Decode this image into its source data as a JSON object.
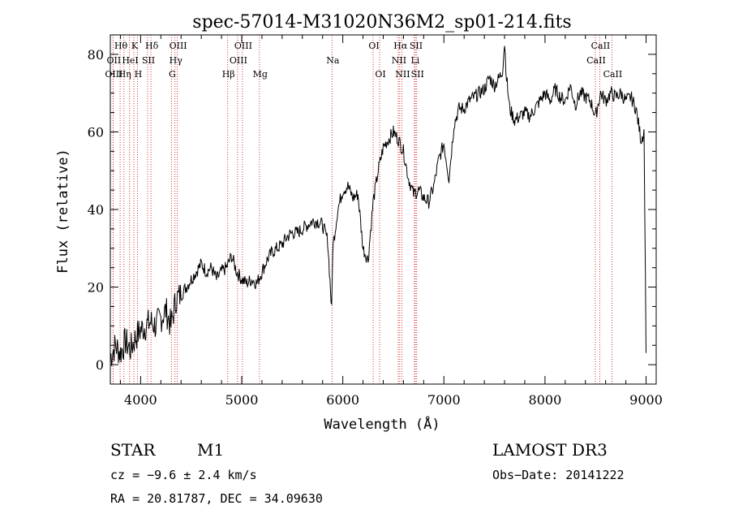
{
  "chart_data": {
    "type": "line",
    "title": "spec-57014-M31020N36M2_sp01-214.fits",
    "xlabel": "Wavelength (Å)",
    "ylabel": "Flux (relative)",
    "xlim": [
      3700,
      9100
    ],
    "ylim": [
      -5,
      85
    ],
    "xticks": [
      4000,
      5000,
      6000,
      7000,
      8000,
      9000
    ],
    "yticks": [
      0,
      20,
      40,
      60,
      80
    ],
    "grid": false,
    "series": [
      {
        "name": "flux",
        "x": [
          3700,
          3750,
          3800,
          3850,
          3900,
          3950,
          4000,
          4050,
          4100,
          4150,
          4200,
          4250,
          4300,
          4350,
          4400,
          4450,
          4500,
          4550,
          4600,
          4650,
          4700,
          4750,
          4800,
          4850,
          4900,
          4950,
          5000,
          5050,
          5100,
          5150,
          5200,
          5250,
          5300,
          5350,
          5400,
          5450,
          5500,
          5550,
          5600,
          5650,
          5700,
          5750,
          5800,
          5850,
          5890,
          5900,
          5950,
          6000,
          6050,
          6100,
          6150,
          6200,
          6250,
          6300,
          6350,
          6400,
          6450,
          6500,
          6550,
          6600,
          6650,
          6700,
          6750,
          6800,
          6850,
          6900,
          6950,
          7000,
          7050,
          7100,
          7150,
          7200,
          7250,
          7300,
          7350,
          7400,
          7450,
          7500,
          7550,
          7580,
          7600,
          7620,
          7650,
          7700,
          7750,
          7800,
          7850,
          7900,
          7950,
          8000,
          8050,
          8100,
          8150,
          8200,
          8250,
          8300,
          8350,
          8400,
          8450,
          8500,
          8550,
          8600,
          8650,
          8700,
          8750,
          8800,
          8850,
          8900,
          8950,
          8980,
          9000
        ],
        "y": [
          2,
          5,
          3,
          6,
          4,
          7,
          9,
          10,
          11,
          10,
          12,
          14,
          10,
          17,
          18,
          20,
          22,
          24,
          26,
          24,
          25,
          22,
          24,
          25,
          28,
          24,
          22,
          21,
          22,
          21,
          24,
          27,
          29,
          30,
          31,
          33,
          34,
          34,
          35,
          36,
          37,
          37,
          36,
          32,
          14,
          30,
          40,
          45,
          46,
          43,
          44,
          30,
          27,
          42,
          50,
          56,
          58,
          60,
          58,
          55,
          48,
          44,
          45,
          43,
          42,
          46,
          53,
          57,
          48,
          62,
          66,
          66,
          68,
          69,
          70,
          71,
          74,
          72,
          74,
          76,
          83,
          74,
          66,
          63,
          64,
          65,
          64,
          66,
          68,
          70,
          68,
          71,
          69,
          68,
          72,
          67,
          70,
          69,
          68,
          64,
          70,
          68,
          70,
          69,
          70,
          68,
          69,
          66,
          58,
          60,
          3
        ]
      }
    ],
    "line_markers": [
      {
        "label": "Hθ",
        "x": 3797,
        "row": 0
      },
      {
        "label": "K",
        "x": 3933,
        "row": 0
      },
      {
        "label": "Hδ",
        "x": 4102,
        "row": 0
      },
      {
        "label": "OIII",
        "x": 4363,
        "row": 0
      },
      {
        "label": "OIII",
        "x": 5007,
        "row": 0
      },
      {
        "label": "OI",
        "x": 6300,
        "row": 0
      },
      {
        "label": "Hα",
        "x": 6563,
        "row": 0
      },
      {
        "label": "SII",
        "x": 6717,
        "row": 0
      },
      {
        "label": "CaII",
        "x": 8542,
        "row": 0
      },
      {
        "label": "OII",
        "x": 3727,
        "row": 1
      },
      {
        "label": "HeI",
        "x": 3889,
        "row": 1
      },
      {
        "label": "SII",
        "x": 4069,
        "row": 1
      },
      {
        "label": "Hγ",
        "x": 4340,
        "row": 1
      },
      {
        "label": "OIII",
        "x": 4959,
        "row": 1
      },
      {
        "label": "Na",
        "x": 5893,
        "row": 1
      },
      {
        "label": "NII",
        "x": 6548,
        "row": 1
      },
      {
        "label": "Li",
        "x": 6708,
        "row": 1
      },
      {
        "label": "CaII",
        "x": 8498,
        "row": 1
      },
      {
        "label": "OIII",
        "x": 3727,
        "row": 2
      },
      {
        "label": "Hη",
        "x": 3835,
        "row": 2
      },
      {
        "label": "H",
        "x": 3968,
        "row": 2
      },
      {
        "label": "G",
        "x": 4305,
        "row": 2
      },
      {
        "label": "Hβ",
        "x": 4861,
        "row": 2
      },
      {
        "label": "Mg",
        "x": 5175,
        "row": 2
      },
      {
        "label": "OI",
        "x": 6364,
        "row": 2
      },
      {
        "label": "NII",
        "x": 6584,
        "row": 2
      },
      {
        "label": "SII",
        "x": 6731,
        "row": 2
      },
      {
        "label": "CaII",
        "x": 8662,
        "row": 2
      }
    ]
  },
  "info": {
    "object_class": "STAR",
    "subclass": "M1",
    "survey": "LAMOST DR3",
    "cz": "cz = −9.6 ± 2.4 km/s",
    "obs_date": "Obs−Date: 20141222",
    "coords": "RA =  20.81787, DEC =  34.09630"
  },
  "colors": {
    "axis": "#000000",
    "spectrum": "#000000",
    "marker_line": "#cc0000"
  }
}
